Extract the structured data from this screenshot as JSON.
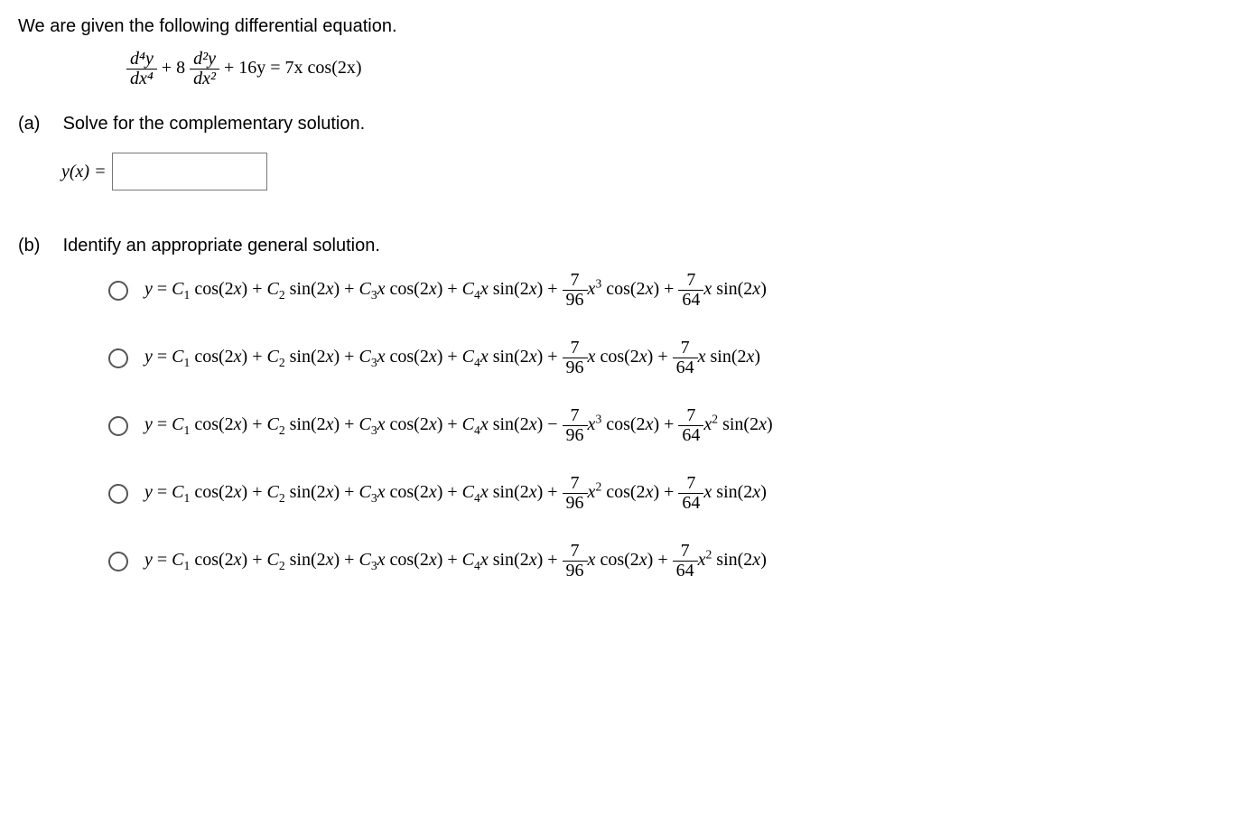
{
  "intro": "We are given the following differential equation.",
  "main_eq": {
    "f1_num": "d⁴y",
    "f1_den": "dx⁴",
    "plus8": " + 8",
    "f2_num": "d²y",
    "f2_den": "dx²",
    "tail": " + 16y = 7x cos(2x)"
  },
  "parts": {
    "a_label": "(a)",
    "a_text": "Solve for the complementary solution.",
    "a_yx": "y(x) = ",
    "b_label": "(b)",
    "b_text": "Identify an appropriate general solution."
  },
  "opt_common": {
    "prefix": "y = C",
    "s1": " cos(2x) + C",
    "s2": " sin(2x) + C",
    "s3": "x cos(2x) + C",
    "s4": "x sin(2x) ",
    "sub1": "1",
    "sub2": "2",
    "sub3": "3",
    "sub4": "4"
  },
  "frac96": {
    "num": "7",
    "den": "96"
  },
  "frac64": {
    "num": "7",
    "den": "64"
  },
  "options": [
    {
      "sign": "+ ",
      "p1_x": "x",
      "p1_pow": "3",
      "p1_trig": " cos(2x) + ",
      "p2_x": "x",
      "p2_pow": "",
      "p2_trig": " sin(2x)"
    },
    {
      "sign": "+ ",
      "p1_x": "x",
      "p1_pow": "",
      "p1_trig": " cos(2x) + ",
      "p2_x": "x",
      "p2_pow": "",
      "p2_trig": " sin(2x)"
    },
    {
      "sign": "− ",
      "p1_x": "x",
      "p1_pow": "3",
      "p1_trig": " cos(2x) + ",
      "p2_x": "x",
      "p2_pow": "2",
      "p2_trig": " sin(2x)"
    },
    {
      "sign": "+ ",
      "p1_x": "x",
      "p1_pow": "2",
      "p1_trig": " cos(2x) + ",
      "p2_x": "x",
      "p2_pow": "",
      "p2_trig": " sin(2x)"
    },
    {
      "sign": "+ ",
      "p1_x": "x",
      "p1_pow": "",
      "p1_trig": " cos(2x) + ",
      "p2_x": "x",
      "p2_pow": "2",
      "p2_trig": " sin(2x)"
    }
  ]
}
